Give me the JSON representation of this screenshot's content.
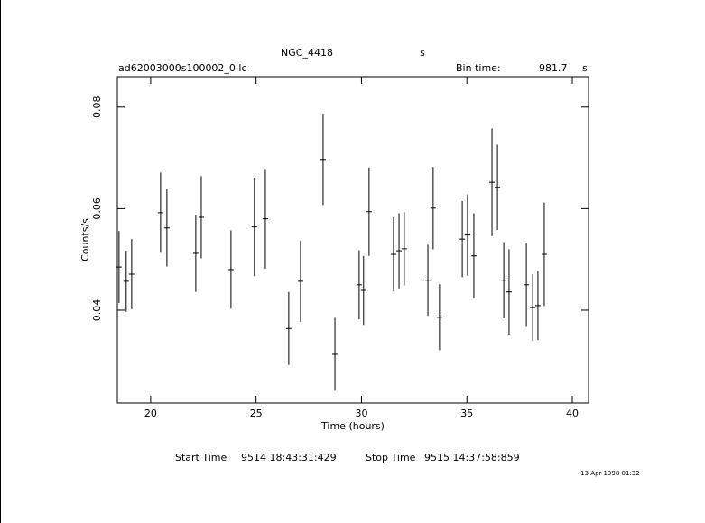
{
  "chart_data": {
    "type": "errorbar",
    "title": "NGC_4418",
    "title_unit": "s",
    "file_name": "ad62003000s100002_0.lc",
    "bin_time_label": "Bin time:",
    "bin_time": 981.7,
    "bin_time_unit": "s",
    "xlabel": "Time (hours)",
    "ylabel": "Counts/s",
    "start_time_label": "Start Time",
    "start_time": "9514 18:43:31:429",
    "stop_time_label": "Stop Time",
    "stop_time": "9515 14:37:58:859",
    "timestamp": "13-Apr-1998 01:32",
    "xlim": [
      18.42,
      40.77
    ],
    "xticks": [
      20,
      25,
      30,
      35,
      40
    ],
    "ylim": [
      0.0217,
      0.086
    ],
    "yticks": [
      0.04,
      0.06,
      0.08
    ],
    "series": [
      {
        "color": "#000000",
        "x": [
          18.5,
          18.84,
          19.1,
          20.47,
          20.77,
          22.14,
          22.4,
          23.81,
          24.92,
          25.44,
          26.55,
          27.11,
          28.18,
          28.74,
          29.89,
          30.1,
          30.36,
          31.52,
          31.78,
          32.03,
          33.15,
          33.4,
          33.7,
          34.78,
          35.03,
          35.33,
          36.19,
          36.45,
          36.75,
          37.0,
          37.82,
          38.12,
          38.37,
          38.67
        ],
        "values": [
          0.0485,
          0.0457,
          0.0471,
          0.0592,
          0.0562,
          0.0512,
          0.0583,
          0.048,
          0.0564,
          0.058,
          0.0364,
          0.0457,
          0.0697,
          0.0313,
          0.045,
          0.0439,
          0.0594,
          0.051,
          0.0517,
          0.0521,
          0.0459,
          0.0601,
          0.0386,
          0.054,
          0.0548,
          0.0507,
          0.0652,
          0.0642,
          0.0459,
          0.0436,
          0.045,
          0.0405,
          0.0409,
          0.051
        ],
        "errors": [
          0.0071,
          0.006,
          0.0069,
          0.0079,
          0.0076,
          0.0076,
          0.0081,
          0.0077,
          0.0097,
          0.0098,
          0.0072,
          0.008,
          0.009,
          0.0072,
          0.0068,
          0.0068,
          0.0087,
          0.0073,
          0.0074,
          0.0072,
          0.007,
          0.0081,
          0.0065,
          0.0075,
          0.008,
          0.0084,
          0.0106,
          0.0084,
          0.0075,
          0.0084,
          0.0083,
          0.0066,
          0.0068,
          0.0102
        ]
      }
    ]
  }
}
